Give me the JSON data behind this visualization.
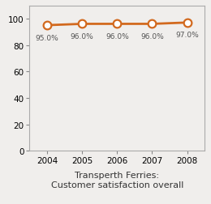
{
  "years": [
    2004,
    2005,
    2006,
    2007,
    2008
  ],
  "values": [
    95.0,
    96.0,
    96.0,
    96.0,
    97.0
  ],
  "labels": [
    "95.0%",
    "96.0%",
    "96.0%",
    "96.0%",
    "97.0%"
  ],
  "line_color": "#d2691e",
  "marker_face": "#ffffff",
  "marker_edge": "#d2691e",
  "title_line1": "Transperth Ferries:",
  "title_line2": "Customer satisfaction overall",
  "ylim": [
    0,
    110
  ],
  "yticks": [
    0,
    20,
    40,
    60,
    80,
    100
  ],
  "xlim": [
    2003.5,
    2008.5
  ],
  "bg_color": "#f0eeec",
  "line_width": 2.0,
  "marker_size": 7,
  "marker_edge_width": 1.6,
  "label_fontsize": 6.5,
  "title_fontsize": 8.0,
  "tick_fontsize": 7.5,
  "spine_color": "#aaaaaa",
  "tick_color": "#888888",
  "label_color": "#555555",
  "title_color": "#333333"
}
